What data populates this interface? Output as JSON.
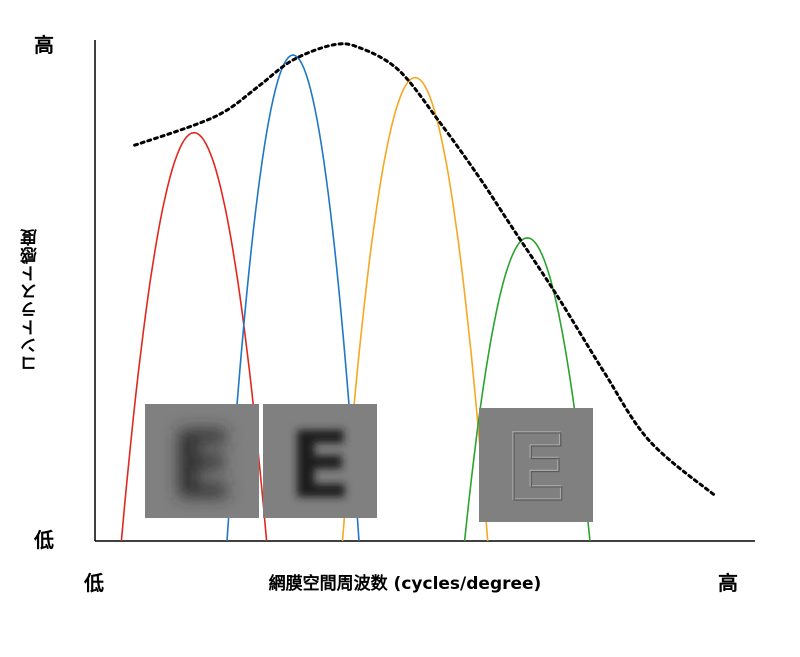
{
  "chart_data": {
    "type": "line",
    "title": "",
    "xlabel": "網膜空間周波数 (cycles/degree)",
    "ylabel": "コントラスト感度",
    "x_tick_labels": {
      "low": "低",
      "high": "高"
    },
    "y_tick_labels": {
      "low": "低",
      "high": "高"
    },
    "xlim": [
      0,
      100
    ],
    "ylim": [
      0,
      100
    ],
    "envelope": {
      "name": "",
      "style": "dotted",
      "color": "#000000",
      "points": [
        [
          6,
          79
        ],
        [
          15,
          83
        ],
        [
          20,
          86
        ],
        [
          25,
          91
        ],
        [
          30,
          96
        ],
        [
          36,
          99
        ],
        [
          40,
          98.5
        ],
        [
          46,
          94
        ],
        [
          52,
          84
        ],
        [
          58,
          73
        ],
        [
          63,
          63
        ],
        [
          70,
          49
        ],
        [
          77,
          34
        ],
        [
          84,
          20
        ],
        [
          94,
          9
        ]
      ]
    },
    "channels": [
      {
        "name": "",
        "color": "#e0281e",
        "peak_x": 15,
        "peak_y": 81.5,
        "half_width": 11
      },
      {
        "name": "",
        "color": "#1f77c6",
        "peak_x": 30,
        "peak_y": 97,
        "half_width": 10
      },
      {
        "name": "",
        "color": "#f5a823",
        "peak_x": 48.5,
        "peak_y": 92.5,
        "half_width": 11
      },
      {
        "name": "",
        "color": "#2ca32c",
        "peak_x": 65.5,
        "peak_y": 60.5,
        "half_width": 9.5
      }
    ],
    "insets": [
      {
        "name": "blurred-E-inset",
        "letter": "E",
        "render": "blur-heavy"
      },
      {
        "name": "medium-blur-E-inset",
        "letter": "E",
        "render": "blur-medium"
      },
      {
        "name": "edge-E-inset",
        "letter": "E",
        "render": "edges"
      }
    ],
    "grid": false,
    "legend": "none"
  },
  "colors": {
    "axis": "#000000",
    "inset_bg": "#808080"
  }
}
